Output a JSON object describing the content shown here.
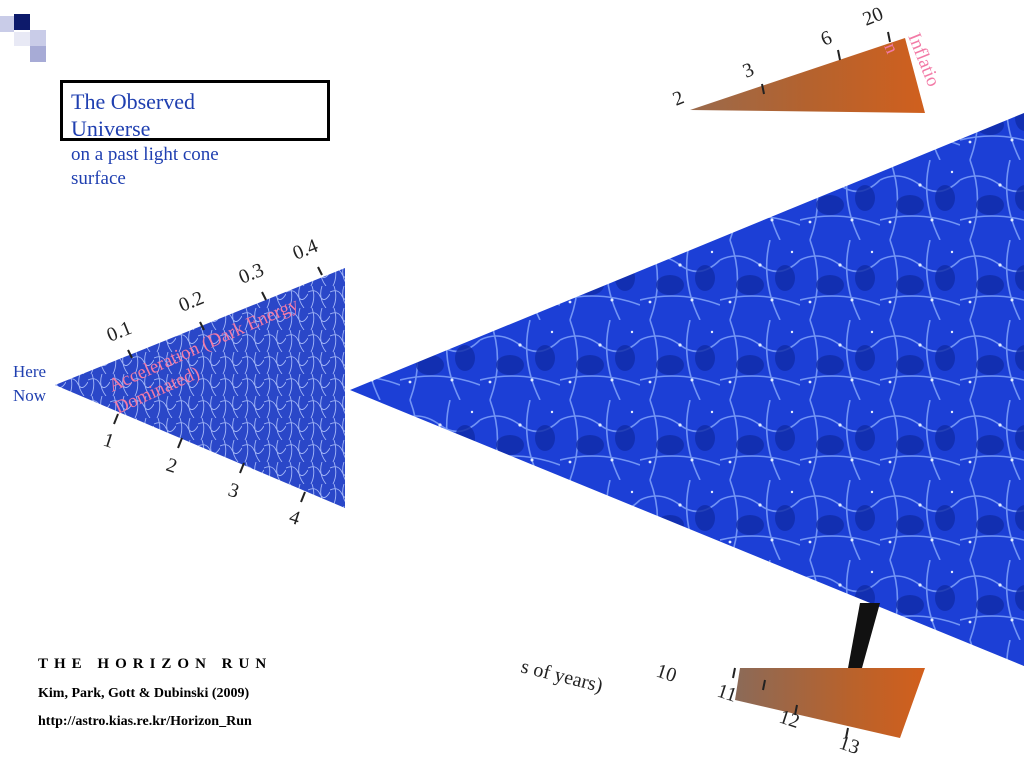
{
  "slide": {
    "title_line1": "The Observed",
    "title_line2": "Universe",
    "subtitle_line1": "on a past light cone",
    "subtitle_line2": "surface",
    "here_label": "Here",
    "now_label": "Now",
    "inflation_label": "Inflatio",
    "inflation_label_n": "n",
    "acceleration_label_1": "Acceleration (Dark Energy",
    "acceleration_label_2": "Dominated)",
    "axis_fragment_bottom": "s of years)",
    "credits": {
      "title": "THE HORIZON RUN",
      "authors": "Kim, Park, Gott & Dubinski (2009)",
      "url": "http://astro.kias.re.kr/Horizon_Run"
    }
  },
  "redshift_ticks": [
    "0.1",
    "0.2",
    "0.3",
    "0.4"
  ],
  "redshift_ticks_far": [
    "2",
    "3",
    "6",
    "20"
  ],
  "time_ticks_near": [
    "1",
    "2",
    "3",
    "4"
  ],
  "time_ticks_far": [
    "10",
    "11",
    "12",
    "13"
  ],
  "colors": {
    "title_blue": "#1f3fb0",
    "inflation_pink": "#f27aa6",
    "cosmic_web_blue": "#1a3fd6",
    "cmb_orange": "#c8642a"
  },
  "icons": {
    "logo": "checkered-squares-logo"
  }
}
